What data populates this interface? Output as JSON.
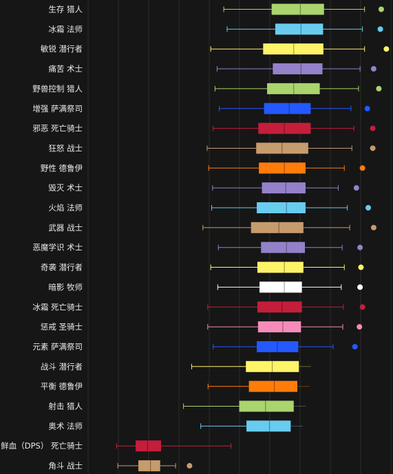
{
  "chart_data": {
    "type": "box",
    "title": "",
    "xlabel": "",
    "ylabel": "",
    "xlim": [
      0,
      100
    ],
    "grid": "vertical",
    "categories": [
      "生存 猎人",
      "冰霜 法师",
      "敏锐 潜行者",
      "痛苦 术士",
      "野兽控制 猎人",
      "增强 萨满祭司",
      "邪恶 死亡骑士",
      "狂怒 战士",
      "野性 德鲁伊",
      "毁灭 术士",
      "火焰 法师",
      "武器 战士",
      "恶魔学识 术士",
      "奇袭 潜行者",
      "暗影 牧师",
      "冰霜 死亡骑士",
      "惩戒 圣骑士",
      "元素 萨满祭司",
      "战斗 潜行者",
      "平衡 德鲁伊",
      "射击 猎人",
      "奥术 法师",
      "鲜血（DPS） 死亡骑士",
      "角斗 战士"
    ],
    "boxes": [
      {
        "min": 44.8,
        "q1": 60.6,
        "median": 70.1,
        "q3": 77.9,
        "max": 91.3,
        "outlier": 96.8,
        "color": "#a9d46e"
      },
      {
        "min": 45.9,
        "q1": 61.8,
        "median": 70.3,
        "q3": 77.6,
        "max": 90.6,
        "outlier": 96.5,
        "color": "#68ccef"
      },
      {
        "min": 40.5,
        "q1": 57.8,
        "median": 67.9,
        "q3": 77.7,
        "max": 91.3,
        "outlier": 98.5,
        "color": "#fff468"
      },
      {
        "min": 42.6,
        "q1": 61.0,
        "median": 70.3,
        "q3": 77.4,
        "max": 89.8,
        "outlier": 94.3,
        "color": "#9382c9"
      },
      {
        "min": 41.9,
        "q1": 59.1,
        "median": 67.9,
        "q3": 76.5,
        "max": 89.3,
        "outlier": 96.0,
        "color": "#a9d46e"
      },
      {
        "min": 43.3,
        "q1": 58.1,
        "median": 66.4,
        "q3": 73.5,
        "max": 86.8,
        "outlier": 92.2,
        "color": "#2359ff"
      },
      {
        "min": 41.3,
        "q1": 56.2,
        "median": 64.8,
        "q3": 73.5,
        "max": 87.8,
        "outlier": 94.0,
        "color": "#c41e3b"
      },
      {
        "min": 39.3,
        "q1": 55.5,
        "median": 64.0,
        "q3": 72.7,
        "max": 87.1,
        "outlier": 94.0,
        "color": "#c69b6d"
      },
      {
        "min": 39.8,
        "q1": 56.4,
        "median": 64.8,
        "q3": 71.8,
        "max": 84.6,
        "outlier": 90.6,
        "color": "#ff7c0a"
      },
      {
        "min": 41.1,
        "q1": 57.4,
        "median": 65.3,
        "q3": 71.8,
        "max": 82.6,
        "outlier": 88.6,
        "color": "#9382c9"
      },
      {
        "min": 40.8,
        "q1": 55.7,
        "median": 65.5,
        "q3": 71.8,
        "max": 85.6,
        "outlier": 92.5,
        "color": "#68ccef"
      },
      {
        "min": 37.9,
        "q1": 53.8,
        "median": 63.0,
        "q3": 71.1,
        "max": 86.4,
        "outlier": 94.3,
        "color": "#c69b6d"
      },
      {
        "min": 43.0,
        "q1": 57.1,
        "median": 65.5,
        "q3": 71.6,
        "max": 83.9,
        "outlier": 89.8,
        "color": "#9382c9"
      },
      {
        "min": 40.5,
        "q1": 55.9,
        "median": 64.8,
        "q3": 71.1,
        "max": 84.6,
        "outlier": 90.1,
        "color": "#fff468"
      },
      {
        "min": 42.8,
        "q1": 56.6,
        "median": 64.8,
        "q3": 70.6,
        "max": 83.6,
        "outlier": 89.8,
        "color": "#ffffff"
      },
      {
        "min": 39.5,
        "q1": 55.9,
        "median": 64.0,
        "q3": 70.6,
        "max": 84.3,
        "outlier": 90.6,
        "color": "#c41e3b"
      },
      {
        "min": 39.5,
        "q1": 56.1,
        "median": 64.3,
        "q3": 70.3,
        "max": 84.1,
        "outlier": 89.6,
        "color": "#f48cba"
      },
      {
        "min": 41.3,
        "q1": 55.7,
        "median": 62.5,
        "q3": 69.4,
        "max": 80.9,
        "outlier": 88.1,
        "color": "#2359ff"
      },
      {
        "min": 34.2,
        "q1": 52.1,
        "median": 60.8,
        "q3": 69.6,
        "max": null,
        "outlier": null,
        "color": "#fff468"
      },
      {
        "min": 39.6,
        "q1": 53.1,
        "median": 61.5,
        "q3": 69.1,
        "max": null,
        "outlier": null,
        "color": "#ff7c0a"
      },
      {
        "min": 31.5,
        "q1": 49.9,
        "median": 58.6,
        "q3": 67.9,
        "max": null,
        "outlier": null,
        "color": "#a9d46e"
      },
      {
        "min": 37.2,
        "q1": 52.3,
        "median": 59.9,
        "q3": 66.9,
        "max": null,
        "outlier": null,
        "color": "#68ccef"
      },
      {
        "min": 9.4,
        "q1": 15.7,
        "median": 19.6,
        "q3": 24.1,
        "max": 47.2,
        "outlier": null,
        "color": "#c41e3b"
      },
      {
        "min": 9.8,
        "q1": 16.6,
        "median": 20.6,
        "q3": 23.8,
        "max": 28.9,
        "outlier": 33.5,
        "color": "#c69b6d"
      }
    ]
  }
}
